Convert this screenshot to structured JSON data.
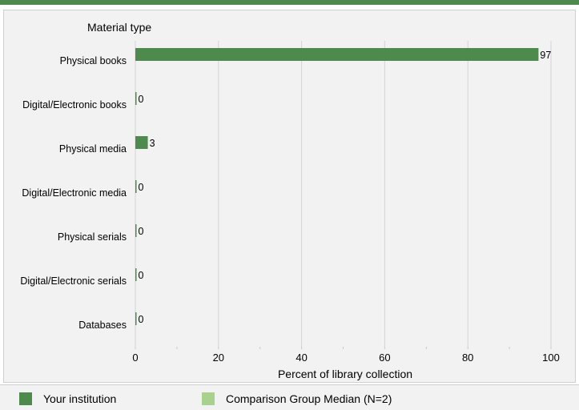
{
  "chart_data": {
    "type": "bar",
    "orientation": "horizontal",
    "title": "Material type",
    "xlabel": "Percent of library collection",
    "xlim": [
      0,
      100
    ],
    "xticks": [
      0,
      20,
      40,
      60,
      80,
      100
    ],
    "grid": true,
    "categories": [
      "Physical books",
      "Digital/Electronic books",
      "Physical media",
      "Digital/Electronic media",
      "Physical serials",
      "Digital/Electronic serials",
      "Databases"
    ],
    "series": [
      {
        "name": "Your institution",
        "color": "#4e8a4e",
        "values": [
          97,
          0,
          3,
          0,
          0,
          0,
          0
        ]
      }
    ]
  },
  "legend": {
    "placement": "bottom",
    "items": [
      {
        "label": "Your institution",
        "color": "#4e8a4e"
      },
      {
        "label": "Comparison Group Median (N=2)",
        "color": "#a8d18d"
      }
    ]
  },
  "colors": {
    "panel_bg": "#f2f2f2",
    "gridline": "#d4d4d4",
    "accent": "#4e8a4e"
  }
}
